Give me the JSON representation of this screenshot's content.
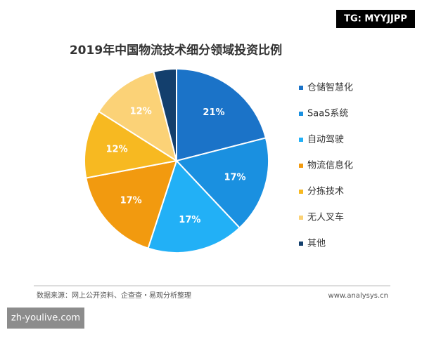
{
  "chart_data": {
    "type": "pie",
    "title": "2019年中国物流技术细分领域投资比例",
    "categories": [
      "仓储智慧化",
      "SaaS系统",
      "自动驾驶",
      "物流信息化",
      "分拣技术",
      "无人叉车",
      "其他"
    ],
    "values": [
      21,
      17,
      17,
      17,
      12,
      12,
      4
    ],
    "value_labels": [
      "21%",
      "17%",
      "17%",
      "17%",
      "12%",
      "12%",
      null
    ],
    "colors": [
      "#1b73c8",
      "#1a90e0",
      "#22b0f6",
      "#f29a0f",
      "#f7b921",
      "#fbd277",
      "#133f6d"
    ],
    "legend": "right",
    "source": "数据来源：网上公开资料、企查查・易观分析整理",
    "website": "www.analysys.cn"
  },
  "watermarks": {
    "top_right": "TG: MYYJJPP",
    "bottom_left": "zh-youlive.com"
  }
}
